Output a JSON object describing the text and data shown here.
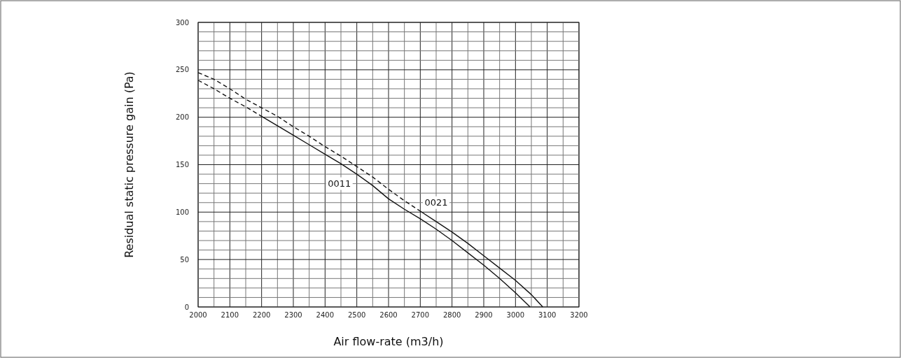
{
  "chart_data": {
    "type": "line",
    "xlabel": "Air flow-rate (m3/h)",
    "ylabel": "Residual static pressure gain (Pa)",
    "xlim": [
      2000,
      3200
    ],
    "ylim": [
      0,
      300
    ],
    "xticks": [
      2000,
      {
        "value": 2050,
        "label": null
      },
      2100,
      {
        "value": 2150,
        "label": null
      },
      2200,
      {
        "value": 2250,
        "label": null
      },
      2300,
      {
        "value": 2350,
        "label": null
      },
      2400,
      {
        "value": 2450,
        "label": null
      },
      2500,
      {
        "value": 2550,
        "label": null
      },
      2600,
      {
        "value": 2650,
        "label": null
      },
      2700,
      {
        "value": 2750,
        "label": null
      },
      2800,
      {
        "value": 2850,
        "label": null
      },
      2900,
      {
        "value": 2950,
        "label": null
      },
      3000,
      {
        "value": 3050,
        "label": null
      },
      3100,
      {
        "value": 3150,
        "label": null
      },
      3200
    ],
    "yticks": [
      0,
      {
        "value": 10,
        "label": null
      },
      {
        "value": 20,
        "label": null
      },
      {
        "value": 30,
        "label": null
      },
      {
        "value": 40,
        "label": null
      },
      50,
      {
        "value": 60,
        "label": null
      },
      {
        "value": 70,
        "label": null
      },
      {
        "value": 80,
        "label": null
      },
      {
        "value": 90,
        "label": null
      },
      100,
      {
        "value": 110,
        "label": null
      },
      {
        "value": 120,
        "label": null
      },
      {
        "value": 130,
        "label": null
      },
      {
        "value": 140,
        "label": null
      },
      150,
      {
        "value": 160,
        "label": null
      },
      {
        "value": 170,
        "label": null
      },
      {
        "value": 180,
        "label": null
      },
      {
        "value": 190,
        "label": null
      },
      200,
      {
        "value": 210,
        "label": null
      },
      {
        "value": 220,
        "label": null
      },
      {
        "value": 230,
        "label": null
      },
      {
        "value": 240,
        "label": null
      },
      250,
      {
        "value": 260,
        "label": null
      },
      {
        "value": 270,
        "label": null
      },
      {
        "value": 280,
        "label": null
      },
      {
        "value": 290,
        "label": null
      },
      300
    ],
    "grid": true,
    "series": [
      {
        "color": "#111111",
        "line_style": "dashed",
        "x": [
          2000,
          2050,
          2100,
          2150,
          2200
        ],
        "values": [
          239,
          230,
          220,
          211,
          201
        ]
      },
      {
        "color": "#111111",
        "line_style": "solid",
        "x": [
          2200,
          2250,
          2300,
          2350,
          2400,
          2450,
          2500,
          2550,
          2600,
          2650,
          2700,
          2750,
          2800,
          2850,
          2900,
          2950,
          3000,
          3046
        ],
        "values": [
          201,
          191,
          181,
          171,
          161,
          151,
          140,
          128,
          114,
          103,
          93,
          82,
          70,
          57,
          44,
          30,
          15,
          0
        ]
      },
      {
        "color": "#111111",
        "line_style": "dashed",
        "x": [
          2000,
          2050,
          2100,
          2150,
          2200,
          2250,
          2300,
          2350,
          2400,
          2450,
          2500,
          2550,
          2600,
          2650,
          2700
        ],
        "values": [
          247,
          240,
          230,
          219,
          210,
          201,
          190,
          180,
          169,
          159,
          148,
          137,
          124,
          112,
          101
        ]
      },
      {
        "color": "#111111",
        "line_style": "solid",
        "x": [
          2700,
          2750,
          2800,
          2850,
          2900,
          2950,
          3000,
          3050,
          3086
        ],
        "values": [
          101,
          90,
          79,
          67,
          54,
          41,
          28,
          13,
          0
        ]
      }
    ],
    "annotations": [
      {
        "text": "0011",
        "x": 2445,
        "y": 130
      },
      {
        "text": "0021",
        "x": 2750,
        "y": 110
      }
    ]
  }
}
